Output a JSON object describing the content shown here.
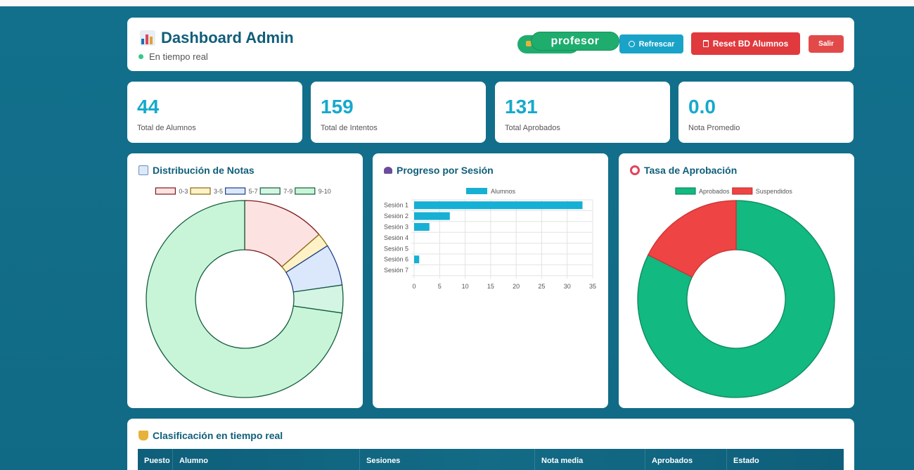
{
  "header": {
    "title": "Dashboard Admin",
    "status": "En tiempo real",
    "role": "profesor",
    "buttons": {
      "refresh": "Refrescar",
      "reset": "Reset BD Alumnos",
      "exit": "Salir"
    }
  },
  "stats": [
    {
      "value": "44",
      "label": "Total de Alumnos"
    },
    {
      "value": "159",
      "label": "Total de Intentos"
    },
    {
      "value": "131",
      "label": "Total Aprobados"
    },
    {
      "value": "0.0",
      "label": "Nota Promedio"
    }
  ],
  "charts": {
    "dist_title": "Distribución de Notas",
    "session_title": "Progreso por Sesión",
    "rate_title": "Tasa de Aprobación"
  },
  "chart_data": [
    {
      "type": "pie",
      "variant": "doughnut",
      "title": "Distribución de Notas",
      "categories": [
        "0-3",
        "3-5",
        "5-7",
        "7-9",
        "9-10"
      ],
      "values": [
        6,
        1,
        3,
        2,
        32
      ],
      "colors": [
        "#fde2e2",
        "#fff2c6",
        "#dbe8fb",
        "#d4f5e4",
        "#c8f5d8"
      ],
      "border_colors": [
        "#7d1a1a",
        "#8a6a10",
        "#1e3f8a",
        "#145c3c",
        "#145c3c"
      ],
      "legend": "top"
    },
    {
      "type": "bar",
      "orientation": "horizontal",
      "title": "Progreso por Sesión",
      "categories": [
        "Sesión 1",
        "Sesión 2",
        "Sesión 3",
        "Sesión 4",
        "Sesión 5",
        "Sesión 6",
        "Sesión 7"
      ],
      "series": [
        {
          "name": "Alumnos",
          "values": [
            33,
            7,
            3,
            0,
            0,
            1,
            0
          ]
        }
      ],
      "xlim": [
        0,
        35
      ],
      "xticks": [
        0,
        5,
        10,
        15,
        20,
        25,
        30,
        35
      ],
      "color": "#16b0d4",
      "grid": true,
      "legend": "top"
    },
    {
      "type": "pie",
      "variant": "doughnut",
      "title": "Tasa de Aprobación",
      "categories": [
        "Aprobados",
        "Suspendidos"
      ],
      "values": [
        131,
        28
      ],
      "colors": [
        "#12b981",
        "#ef4444"
      ],
      "legend": "top"
    }
  ],
  "table": {
    "title": "Clasificación en tiempo real",
    "columns": [
      "Puesto",
      "Alumno",
      "Sesiones",
      "Nota media",
      "Aprobados",
      "Estado"
    ]
  }
}
